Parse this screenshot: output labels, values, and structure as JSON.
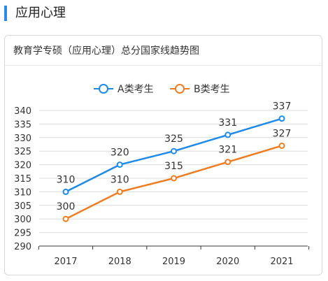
{
  "section": {
    "title": "应用心理"
  },
  "chart_data": {
    "type": "line",
    "title": "教育学专硕（应用心理）总分国家线趋势图",
    "categories": [
      "2017",
      "2018",
      "2019",
      "2020",
      "2021"
    ],
    "series": [
      {
        "name": "A类考生",
        "values": [
          310,
          320,
          325,
          331,
          337
        ],
        "color": "#1f8ae8"
      },
      {
        "name": "B类考生",
        "values": [
          300,
          310,
          315,
          321,
          327
        ],
        "color": "#f07c22"
      }
    ],
    "ylim": [
      290,
      340
    ],
    "yticks": [
      290,
      295,
      300,
      305,
      310,
      315,
      320,
      325,
      330,
      335,
      340
    ],
    "legend_position": "top-center",
    "grid": true
  }
}
